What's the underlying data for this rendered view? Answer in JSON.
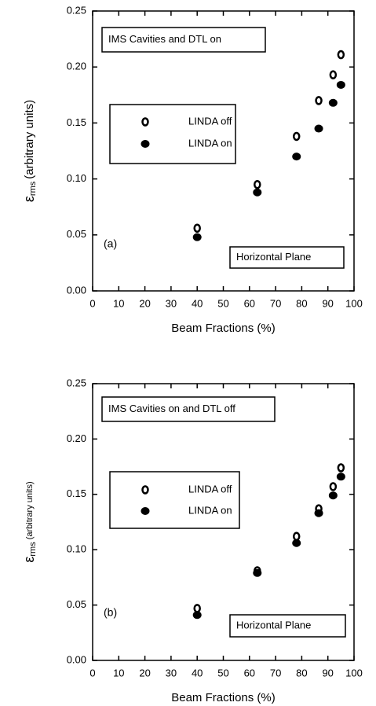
{
  "chart_data": [
    {
      "type": "scatter",
      "xlabel": "Beam Fractions (%)",
      "ylabel": "ε",
      "ylabel_sub": "rms",
      "ylabel_rest": "(arbitrary units)",
      "annotations": [
        "IMS Cavities and DTL on",
        "(a)",
        "Horizontal Plane"
      ],
      "xlim": [
        0,
        100
      ],
      "xticks": [
        0,
        10,
        20,
        30,
        40,
        50,
        60,
        70,
        80,
        90,
        100
      ],
      "ylim": [
        0,
        0.25
      ],
      "yticks": [
        {
          "value": 0,
          "label": "0.00"
        },
        {
          "value": 0.05,
          "label": "0.05"
        },
        {
          "value": 0.1,
          "label": "0.10"
        },
        {
          "value": 0.15,
          "label": "0.15"
        },
        {
          "value": 0.2,
          "label": "0.20"
        },
        {
          "value": 0.25,
          "label": "0.25"
        }
      ],
      "series": [
        {
          "name": "LINDA off",
          "color": "#000000",
          "marker": "open",
          "x": [
            40,
            63,
            78,
            86.5,
            92,
            95
          ],
          "values": [
            0.056,
            0.095,
            0.138,
            0.17,
            0.193,
            0.211
          ]
        },
        {
          "name": "LINDA on",
          "color": "#000000",
          "marker": "filled",
          "x": [
            40,
            63,
            78,
            86.5,
            92,
            95
          ],
          "values": [
            0.048,
            0.088,
            0.12,
            0.145,
            0.168,
            0.184
          ]
        }
      ]
    },
    {
      "type": "scatter",
      "xlabel": "Beam Fractions (%)",
      "ylabel": "ε",
      "ylabel_sub": "rms",
      "ylabel_rest": "(arbitrary units)",
      "annotations": [
        "IMS Cavities on and DTL off",
        "(b)",
        "Horizontal  Plane"
      ],
      "xlim": [
        0,
        100
      ],
      "xticks": [
        0,
        10,
        20,
        30,
        40,
        50,
        60,
        70,
        80,
        90,
        100
      ],
      "ylim": [
        0,
        0.25
      ],
      "yticks": [
        {
          "value": 0,
          "label": "0.00"
        },
        {
          "value": 0.05,
          "label": "0.05"
        },
        {
          "value": 0.1,
          "label": "0.10"
        },
        {
          "value": 0.15,
          "label": "0.15"
        },
        {
          "value": 0.2,
          "label": "0.20"
        },
        {
          "value": 0.25,
          "label": "0.25"
        }
      ],
      "series": [
        {
          "name": "LINDA off",
          "color": "#000000",
          "marker": "open",
          "x": [
            40,
            63,
            78,
            86.5,
            92,
            95
          ],
          "values": [
            0.047,
            0.081,
            0.112,
            0.137,
            0.157,
            0.174
          ]
        },
        {
          "name": "LINDA on",
          "color": "#000000",
          "marker": "filled",
          "x": [
            40,
            63,
            78,
            86.5,
            92,
            95
          ],
          "values": [
            0.041,
            0.079,
            0.106,
            0.133,
            0.149,
            0.166
          ]
        }
      ]
    }
  ]
}
